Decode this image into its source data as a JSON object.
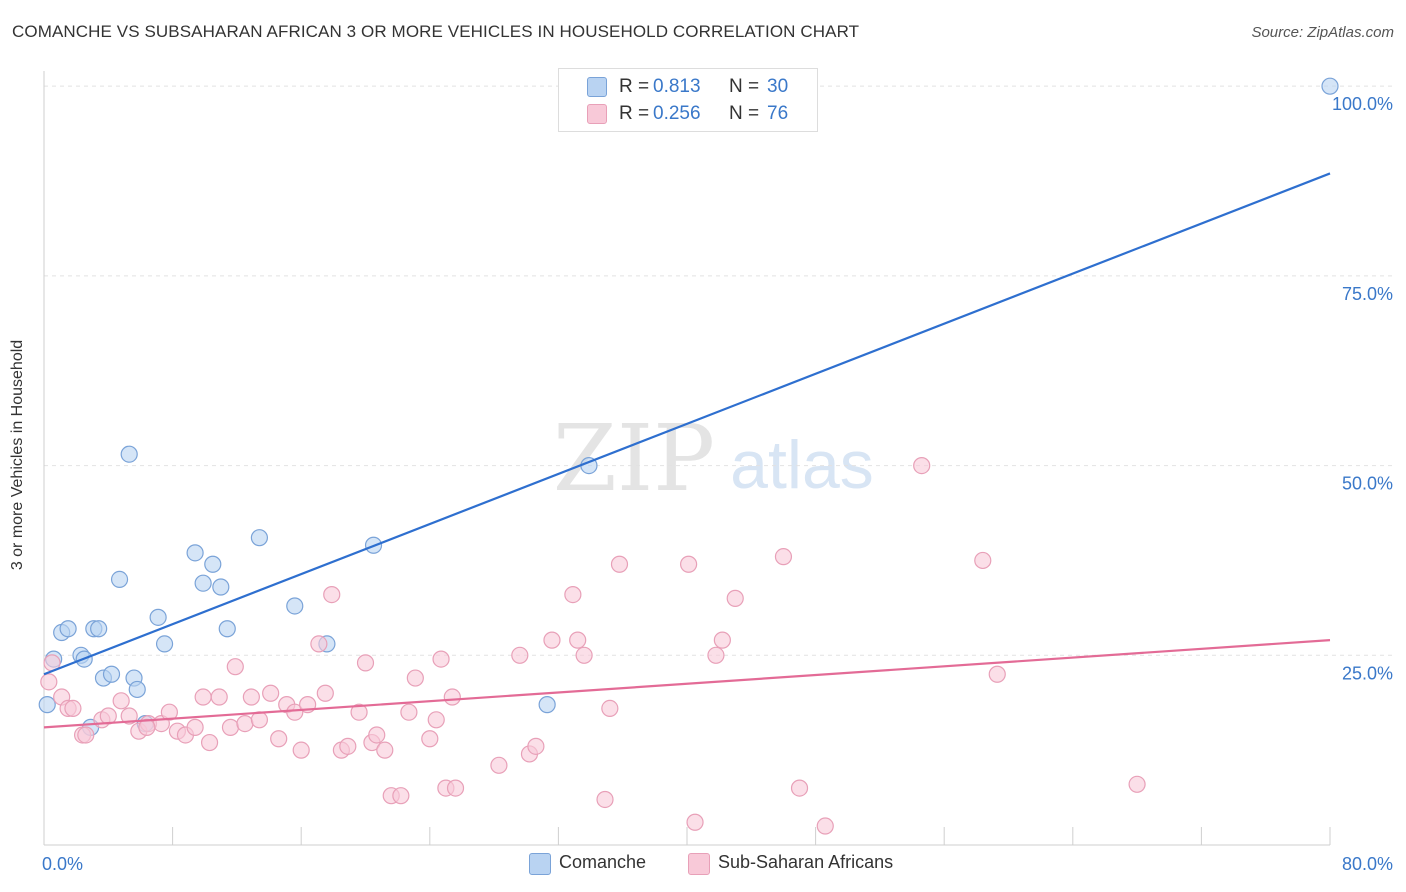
{
  "header": {
    "title": "COMANCHE VS SUBSAHARAN AFRICAN 3 OR MORE VEHICLES IN HOUSEHOLD CORRELATION CHART",
    "source": "Source: ZipAtlas.com"
  },
  "watermark": {
    "zip": "ZIP",
    "atlas": "atlas"
  },
  "legend_top": {
    "rows": [
      {
        "r_label": "R =",
        "r_value": "0.813",
        "n_label": "N =",
        "n_value": "30"
      },
      {
        "r_label": "R =",
        "r_value": "0.256",
        "n_label": "N =",
        "n_value": "76"
      }
    ]
  },
  "legend_bottom": {
    "items": [
      "Comanche",
      "Sub-Saharan Africans"
    ]
  },
  "chart_data": {
    "type": "scatter",
    "ylabel": "3 or more Vehicles in Household",
    "x_tick_labels": [
      "0.0%",
      "80.0%"
    ],
    "y_tick_labels": [
      "25.0%",
      "50.0%",
      "75.0%",
      "100.0%"
    ],
    "y_ticks": [
      25,
      50,
      75,
      100
    ],
    "xlim": [
      0,
      80
    ],
    "ylim": [
      0,
      102
    ],
    "grid": true,
    "legend": "top-center",
    "colors": {
      "Comanche": {
        "fill": "#b9d3f2",
        "stroke": "#7aa3d8",
        "line": "#2e6fcf",
        "legend": "#b9d3f2"
      },
      "Sub-Saharan Africans": {
        "fill": "#f8c9d8",
        "stroke": "#e8a0b8",
        "line": "#e36b96",
        "legend": "#f8c9d8"
      },
      "axis_label": "#3a78c9"
    },
    "series": [
      {
        "name": "Comanche",
        "r": 0.813,
        "n": 30,
        "trend": [
          [
            0,
            22.5
          ],
          [
            80,
            88.5
          ]
        ],
        "points": [
          [
            0.2,
            18.5
          ],
          [
            0.6,
            24.5
          ],
          [
            1.1,
            28.0
          ],
          [
            1.5,
            28.5
          ],
          [
            2.3,
            25.0
          ],
          [
            2.5,
            24.5
          ],
          [
            3.1,
            28.5
          ],
          [
            3.4,
            28.5
          ],
          [
            3.7,
            22.0
          ],
          [
            4.2,
            22.5
          ],
          [
            4.7,
            35.0
          ],
          [
            5.3,
            51.5
          ],
          [
            5.6,
            22.0
          ],
          [
            5.8,
            20.5
          ],
          [
            6.3,
            16.0
          ],
          [
            7.1,
            30.0
          ],
          [
            7.5,
            26.5
          ],
          [
            9.4,
            38.5
          ],
          [
            9.9,
            34.5
          ],
          [
            10.5,
            37.0
          ],
          [
            11.0,
            34.0
          ],
          [
            11.4,
            28.5
          ],
          [
            13.4,
            40.5
          ],
          [
            15.6,
            31.5
          ],
          [
            17.6,
            26.5
          ],
          [
            20.5,
            39.5
          ],
          [
            31.3,
            18.5
          ],
          [
            33.9,
            50.0
          ],
          [
            80.0,
            100.0
          ],
          [
            2.9,
            15.5
          ]
        ]
      },
      {
        "name": "Sub-Saharan Africans",
        "r": 0.256,
        "n": 76,
        "trend": [
          [
            0,
            15.5
          ],
          [
            80,
            27.0
          ]
        ],
        "points": [
          [
            0.3,
            21.5
          ],
          [
            0.5,
            24.0
          ],
          [
            1.1,
            19.5
          ],
          [
            1.5,
            18.0
          ],
          [
            2.4,
            14.5
          ],
          [
            3.6,
            16.5
          ],
          [
            4.0,
            17.0
          ],
          [
            4.8,
            19.0
          ],
          [
            5.3,
            17.0
          ],
          [
            5.9,
            15.0
          ],
          [
            6.5,
            16.0
          ],
          [
            7.3,
            16.0
          ],
          [
            7.8,
            17.5
          ],
          [
            8.3,
            15.0
          ],
          [
            8.8,
            14.5
          ],
          [
            9.4,
            15.5
          ],
          [
            9.9,
            19.5
          ],
          [
            10.3,
            13.5
          ],
          [
            10.9,
            19.5
          ],
          [
            11.6,
            15.5
          ],
          [
            11.9,
            23.5
          ],
          [
            12.5,
            16.0
          ],
          [
            12.9,
            19.5
          ],
          [
            13.4,
            16.5
          ],
          [
            14.1,
            20.0
          ],
          [
            14.6,
            14.0
          ],
          [
            15.1,
            18.5
          ],
          [
            15.6,
            17.5
          ],
          [
            16.0,
            12.5
          ],
          [
            16.4,
            18.5
          ],
          [
            17.1,
            26.5
          ],
          [
            17.5,
            20.0
          ],
          [
            17.9,
            33.0
          ],
          [
            18.5,
            12.5
          ],
          [
            18.9,
            13.0
          ],
          [
            19.6,
            17.5
          ],
          [
            20.0,
            24.0
          ],
          [
            20.4,
            13.5
          ],
          [
            20.7,
            14.5
          ],
          [
            21.2,
            12.5
          ],
          [
            21.6,
            6.5
          ],
          [
            22.2,
            6.5
          ],
          [
            22.7,
            17.5
          ],
          [
            23.1,
            22.0
          ],
          [
            24.0,
            14.0
          ],
          [
            24.4,
            16.5
          ],
          [
            24.7,
            24.5
          ],
          [
            25.0,
            7.5
          ],
          [
            25.6,
            7.5
          ],
          [
            25.4,
            19.5
          ],
          [
            28.3,
            10.5
          ],
          [
            29.6,
            25.0
          ],
          [
            30.2,
            12.0
          ],
          [
            30.6,
            13.0
          ],
          [
            31.6,
            27.0
          ],
          [
            32.9,
            33.0
          ],
          [
            33.2,
            27.0
          ],
          [
            33.6,
            25.0
          ],
          [
            34.9,
            6.0
          ],
          [
            35.2,
            18.0
          ],
          [
            35.8,
            37.0
          ],
          [
            40.1,
            37.0
          ],
          [
            40.5,
            3.0
          ],
          [
            41.8,
            25.0
          ],
          [
            42.2,
            27.0
          ],
          [
            43.0,
            32.5
          ],
          [
            46.0,
            38.0
          ],
          [
            47.0,
            7.5
          ],
          [
            48.6,
            2.5
          ],
          [
            54.6,
            50.0
          ],
          [
            58.4,
            37.5
          ],
          [
            59.3,
            22.5
          ],
          [
            68.0,
            8.0
          ],
          [
            1.8,
            18.0
          ],
          [
            6.4,
            15.5
          ],
          [
            2.6,
            14.5
          ]
        ]
      }
    ]
  }
}
